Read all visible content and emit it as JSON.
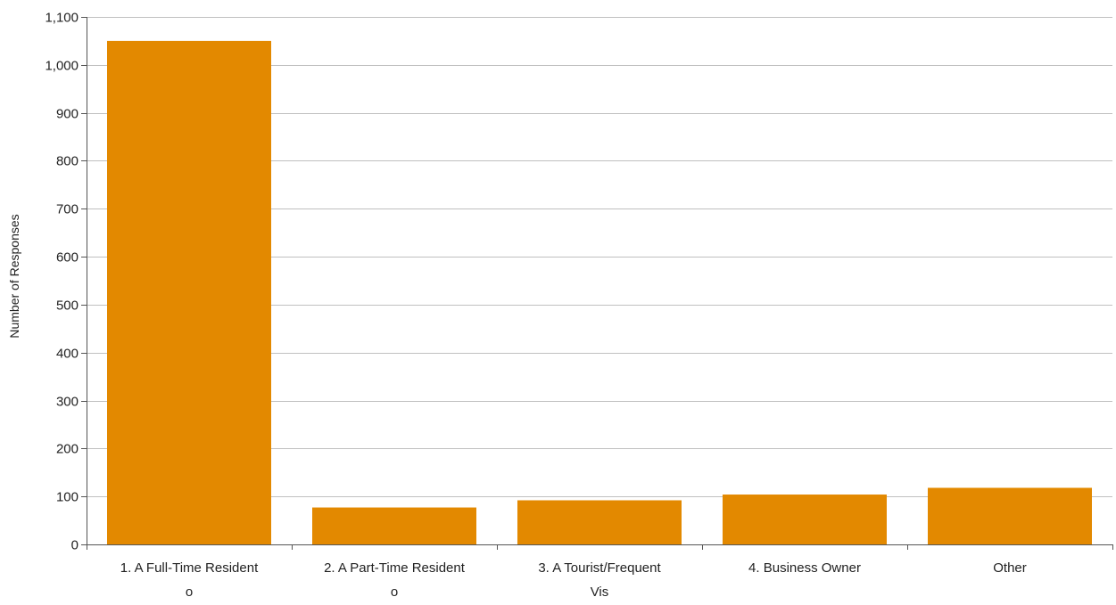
{
  "chart_data": {
    "type": "bar",
    "categories": [
      [
        "1. A Full-Time Resident",
        "o"
      ],
      [
        "2. A Part-Time Resident",
        "o"
      ],
      [
        "3. A Tourist/Frequent",
        "Vis"
      ],
      [
        "4. Business Owner"
      ],
      [
        "Other"
      ]
    ],
    "values": [
      1050,
      77,
      92,
      104,
      118
    ],
    "ylabel": "Number of Responses",
    "ylim": [
      0,
      1100
    ],
    "yticks": [
      0,
      100,
      200,
      300,
      400,
      500,
      600,
      700,
      800,
      900,
      1000,
      1100
    ],
    "ytick_labels": [
      "0",
      "100",
      "200",
      "300",
      "400",
      "500",
      "600",
      "700",
      "800",
      "900",
      "1,000",
      "1,100"
    ],
    "grid": true,
    "bar_color": "#e38900",
    "grid_color": "#c0c0c0",
    "axis_color": "#555555"
  }
}
